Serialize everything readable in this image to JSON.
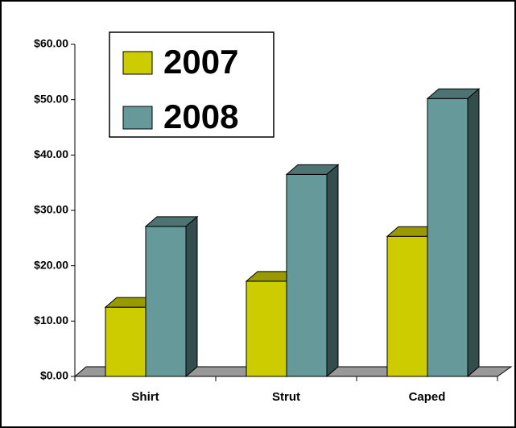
{
  "chart_data": {
    "type": "bar3d",
    "categories": [
      "Shirt",
      "Strut",
      "Caped"
    ],
    "series": [
      {
        "name": "2007",
        "color": "#cccc00",
        "values": [
          12.5,
          17.2,
          25.3
        ]
      },
      {
        "name": "2008",
        "color": "#669999",
        "values": [
          27.1,
          36.5,
          50.2
        ]
      }
    ],
    "ylim": [
      0,
      60
    ],
    "yticks": [
      {
        "value": 0,
        "label": "$0.00"
      },
      {
        "value": 10,
        "label": "$10.00"
      },
      {
        "value": 20,
        "label": "$20.00"
      },
      {
        "value": 30,
        "label": "$30.00"
      },
      {
        "value": 40,
        "label": "$40.00"
      },
      {
        "value": 50,
        "label": "$50.00"
      },
      {
        "value": 60,
        "label": "$60.00"
      }
    ],
    "legend": "top-left"
  }
}
